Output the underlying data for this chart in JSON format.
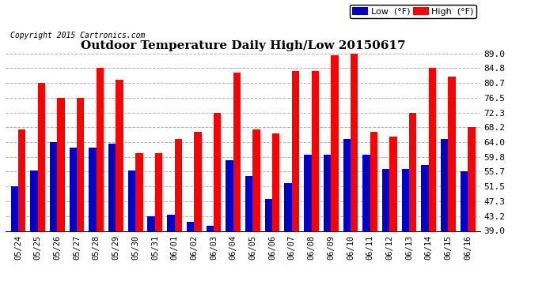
{
  "title": "Outdoor Temperature Daily High/Low 20150617",
  "copyright": "Copyright 2015 Cartronics.com",
  "dates": [
    "05/24",
    "05/25",
    "05/26",
    "05/27",
    "05/28",
    "05/29",
    "05/30",
    "05/31",
    "06/01",
    "06/02",
    "06/03",
    "06/04",
    "06/05",
    "06/06",
    "06/07",
    "06/08",
    "06/09",
    "06/10",
    "06/11",
    "06/12",
    "06/13",
    "06/14",
    "06/15",
    "06/16"
  ],
  "high": [
    67.5,
    80.7,
    76.5,
    76.5,
    84.8,
    81.5,
    61.0,
    60.8,
    65.0,
    67.0,
    72.3,
    83.5,
    67.5,
    66.5,
    84.0,
    84.0,
    88.5,
    89.0,
    67.0,
    65.5,
    72.3,
    84.8,
    82.5,
    68.2
  ],
  "low": [
    51.5,
    56.0,
    64.0,
    62.5,
    62.5,
    63.5,
    56.0,
    43.2,
    43.5,
    41.5,
    40.5,
    59.0,
    54.5,
    48.0,
    52.5,
    60.5,
    60.5,
    65.0,
    60.5,
    56.5,
    56.5,
    57.5,
    65.0,
    55.7
  ],
  "high_color": "#ff0000",
  "low_color": "#0000cc",
  "bg_color": "#ffffff",
  "yticks": [
    39.0,
    43.2,
    47.3,
    51.5,
    55.7,
    59.8,
    64.0,
    68.2,
    72.3,
    76.5,
    80.7,
    84.8,
    89.0
  ],
  "ymin": 39.0,
  "ymax": 89.0,
  "legend_low_label": "Low  (°F)",
  "legend_high_label": "High  (°F)"
}
